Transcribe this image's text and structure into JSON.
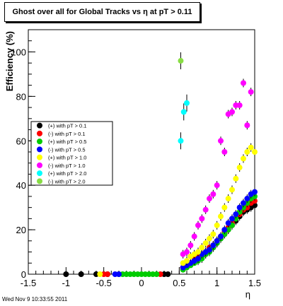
{
  "title": "Ghost over all for Global Tracks vs η at pT > 0.11",
  "footer": "Wed Nov  9 10:33:55 2011",
  "chart_data": {
    "type": "scatter",
    "title": "Ghost over all for Global Tracks vs η at pT > 0.11",
    "xlabel": "η",
    "ylabel": "Efficiency (%)",
    "xlim": [
      -1.5,
      1.5
    ],
    "ylim": [
      0,
      110
    ],
    "x_ticks": [
      -1.5,
      -1,
      -0.5,
      0,
      0.5,
      1,
      1.5
    ],
    "x_tick_labels": [
      "-1.5",
      "-1",
      "-0.5",
      "0",
      "0.5",
      "1",
      "1.5"
    ],
    "y_ticks": [
      0,
      20,
      40,
      60,
      80,
      100
    ],
    "y_tick_labels": [
      "0",
      "20",
      "40",
      "60",
      "80",
      "100"
    ],
    "grid": false,
    "legend_position": "left",
    "series": [
      {
        "name": "(+) with pT > 0.1",
        "color": "#000000",
        "points": [
          [
            -1.0,
            0
          ],
          [
            -0.8,
            0
          ],
          [
            -0.6,
            0
          ],
          [
            -0.45,
            0
          ],
          [
            0.3,
            0
          ],
          [
            0.35,
            0
          ],
          [
            0.55,
            3
          ],
          [
            0.6,
            4
          ],
          [
            0.65,
            5
          ],
          [
            0.7,
            6
          ],
          [
            0.75,
            7
          ],
          [
            0.8,
            8
          ],
          [
            0.85,
            9
          ],
          [
            0.9,
            11
          ],
          [
            0.95,
            12
          ],
          [
            1.0,
            14
          ],
          [
            1.05,
            16
          ],
          [
            1.1,
            18
          ],
          [
            1.15,
            20
          ],
          [
            1.2,
            22
          ],
          [
            1.25,
            24
          ],
          [
            1.3,
            26
          ],
          [
            1.35,
            28
          ],
          [
            1.4,
            29
          ],
          [
            1.45,
            30
          ],
          [
            1.5,
            31
          ]
        ]
      },
      {
        "name": "(-) with pT > 0.1",
        "color": "#ff0000",
        "points": [
          [
            -0.5,
            0
          ],
          [
            -0.45,
            0
          ],
          [
            0.25,
            0
          ],
          [
            0.55,
            3
          ],
          [
            0.6,
            4
          ],
          [
            0.65,
            5
          ],
          [
            0.7,
            7
          ],
          [
            0.75,
            8
          ],
          [
            0.8,
            9
          ],
          [
            0.85,
            10
          ],
          [
            0.9,
            12
          ],
          [
            0.95,
            13
          ],
          [
            1.0,
            15
          ],
          [
            1.05,
            17
          ],
          [
            1.1,
            19
          ],
          [
            1.15,
            21
          ],
          [
            1.2,
            23
          ],
          [
            1.25,
            25
          ],
          [
            1.3,
            27
          ],
          [
            1.35,
            29
          ],
          [
            1.4,
            30
          ],
          [
            1.45,
            32
          ],
          [
            1.5,
            33
          ]
        ]
      },
      {
        "name": "(+) with pT > 0.5",
        "color": "#00cc00",
        "points": [
          [
            -0.3,
            0
          ],
          [
            -0.25,
            0
          ],
          [
            -0.2,
            0
          ],
          [
            -0.15,
            0
          ],
          [
            -0.1,
            0
          ],
          [
            -0.05,
            0
          ],
          [
            0.0,
            0
          ],
          [
            0.05,
            0
          ],
          [
            0.1,
            0
          ],
          [
            0.15,
            0
          ],
          [
            0.2,
            0
          ],
          [
            0.55,
            2
          ],
          [
            0.6,
            3
          ],
          [
            0.65,
            4
          ],
          [
            0.7,
            5
          ],
          [
            0.75,
            6
          ],
          [
            0.8,
            7
          ],
          [
            0.85,
            9
          ],
          [
            0.9,
            10
          ],
          [
            0.95,
            12
          ],
          [
            1.0,
            14
          ],
          [
            1.05,
            16
          ],
          [
            1.1,
            18
          ],
          [
            1.15,
            20
          ],
          [
            1.2,
            22
          ],
          [
            1.25,
            25
          ],
          [
            1.3,
            28
          ],
          [
            1.35,
            30
          ],
          [
            1.4,
            32
          ],
          [
            1.45,
            34
          ],
          [
            1.5,
            35
          ]
        ]
      },
      {
        "name": "(-) with pT > 0.5",
        "color": "#0000ff",
        "points": [
          [
            -0.35,
            0
          ],
          [
            -0.3,
            0
          ],
          [
            0.55,
            3
          ],
          [
            0.6,
            4
          ],
          [
            0.65,
            5
          ],
          [
            0.7,
            6
          ],
          [
            0.75,
            7
          ],
          [
            0.8,
            9
          ],
          [
            0.85,
            10
          ],
          [
            0.9,
            11
          ],
          [
            0.95,
            13
          ],
          [
            1.0,
            15
          ],
          [
            1.05,
            17
          ],
          [
            1.1,
            20
          ],
          [
            1.15,
            23
          ],
          [
            1.2,
            25
          ],
          [
            1.25,
            27
          ],
          [
            1.3,
            30
          ],
          [
            1.35,
            32
          ],
          [
            1.4,
            34
          ],
          [
            1.45,
            36
          ],
          [
            1.5,
            37
          ]
        ]
      },
      {
        "name": "(+) with pT > 1.0",
        "color": "#ffff00",
        "points": [
          [
            -0.55,
            0
          ],
          [
            0.55,
            5
          ],
          [
            0.6,
            6
          ],
          [
            0.65,
            8
          ],
          [
            0.7,
            9
          ],
          [
            0.75,
            10
          ],
          [
            0.8,
            12
          ],
          [
            0.85,
            14
          ],
          [
            0.9,
            16
          ],
          [
            0.95,
            18
          ],
          [
            1.0,
            22
          ],
          [
            1.05,
            26
          ],
          [
            1.1,
            30
          ],
          [
            1.15,
            34
          ],
          [
            1.2,
            38
          ],
          [
            1.25,
            43
          ],
          [
            1.3,
            48
          ],
          [
            1.35,
            52
          ],
          [
            1.4,
            55
          ],
          [
            1.45,
            57
          ],
          [
            1.5,
            55
          ]
        ]
      },
      {
        "name": "(-) with pT > 1.0",
        "color": "#ff00ff",
        "points": [
          [
            0.55,
            9
          ],
          [
            0.6,
            10
          ],
          [
            0.65,
            13
          ],
          [
            0.7,
            17
          ],
          [
            0.75,
            22
          ],
          [
            0.8,
            25
          ],
          [
            0.85,
            29
          ],
          [
            0.9,
            34
          ],
          [
            0.95,
            36
          ],
          [
            1.0,
            40
          ],
          [
            1.05,
            60
          ],
          [
            1.1,
            55
          ],
          [
            1.15,
            72
          ],
          [
            1.2,
            73
          ],
          [
            1.25,
            76
          ],
          [
            1.3,
            76
          ],
          [
            1.35,
            86
          ],
          [
            1.4,
            67
          ],
          [
            1.45,
            82
          ]
        ]
      },
      {
        "name": "(+) with pT > 2.0",
        "color": "#00ffff",
        "points": [
          [
            0.52,
            60
          ],
          [
            0.56,
            73
          ],
          [
            0.6,
            77
          ]
        ]
      },
      {
        "name": "(-) with pT > 2.0",
        "color": "#88dd44",
        "points": [
          [
            0.52,
            96
          ]
        ]
      }
    ]
  }
}
